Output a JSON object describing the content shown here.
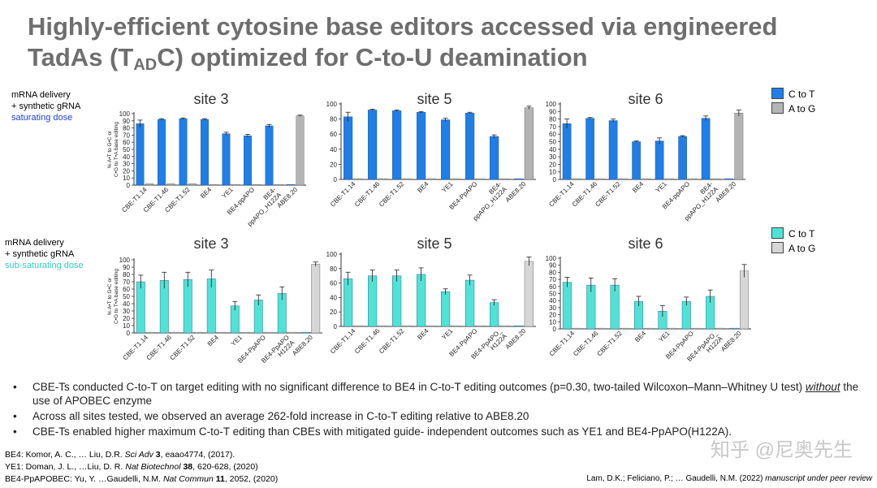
{
  "title": {
    "part1": "Highly-efficient cytosine base editors accessed via engineered",
    "part2a": "TadAs (T",
    "part2sub": "AD",
    "part2b": "C) optimized for C-to-U deamination"
  },
  "rows": [
    {
      "l1": "mRNA delivery",
      "l2": "+ synthetic gRNA",
      "l3": "saturating dose"
    },
    {
      "l1": "mRNA delivery",
      "l2": "+ synthetic gRNA",
      "l3": "sub-saturating dose"
    }
  ],
  "legends": [
    {
      "a": "C to T",
      "b": "A to G",
      "a_color": "#1f7ee8",
      "b_color": "#b4b4b4"
    },
    {
      "a": "C to T",
      "b": "A to G",
      "a_color": "#4fe3d6",
      "b_color": "#d6d6d6"
    }
  ],
  "y_label_line1": "% A•T to G•C or",
  "y_label_line2": "C•G to T•A base editing",
  "chart_data": [
    {
      "type": "bar",
      "title": "site 3",
      "ylim": [
        0,
        100
      ],
      "yticks": [
        0,
        10,
        20,
        30,
        40,
        50,
        60,
        70,
        80,
        90,
        100
      ],
      "categories": [
        "CBE-T1.14",
        "CBE-T1.46",
        "CBE-T1.52",
        "BE4",
        "YE1",
        "BE4-ppAPO",
        "BE4-ppAPO_H122A",
        "ABE8.20"
      ],
      "category_labels": [
        [
          "CBE-T1.14"
        ],
        [
          "CBE-T1.46"
        ],
        [
          "CBE-T1.52"
        ],
        [
          "BE4"
        ],
        [
          "YE1"
        ],
        [
          "BE4-ppAPO"
        ],
        [
          "BE4-",
          "ppAPO_H122A"
        ],
        [
          "ABE8.20"
        ]
      ],
      "series": [
        {
          "name": "C to T",
          "values": [
            86,
            92,
            93,
            92,
            72,
            69,
            83,
            1
          ]
        },
        {
          "name": "A to G",
          "values": [
            2,
            2,
            2,
            1,
            1,
            1,
            1,
            97
          ]
        }
      ],
      "errors": [
        5,
        1,
        1,
        1,
        2,
        2,
        2,
        1
      ],
      "color": "#1f7ee8",
      "other_color": "#b4b4b4"
    },
    {
      "type": "bar",
      "title": "site 5",
      "ylim": [
        0,
        100
      ],
      "yticks": [
        0,
        20,
        40,
        60,
        80,
        100
      ],
      "categories": [
        "CBE-T1.14",
        "CBE-T1.46",
        "CBE-T1.52",
        "BE4",
        "YE1",
        "BE4-PpAPO",
        "BE4-ppAPO_H122A",
        "ABE8.20"
      ],
      "category_labels": [
        [
          "CBE-T1.14"
        ],
        [
          "CBE-T1.46"
        ],
        [
          "CBE-T1.52"
        ],
        [
          "BE4"
        ],
        [
          "YE1"
        ],
        [
          "BE4-PpAPO"
        ],
        [
          "BE4-",
          "ppAPO_H122A"
        ],
        [
          "ABE8.20"
        ]
      ],
      "series": [
        {
          "name": "C to T",
          "values": [
            83,
            92,
            91,
            89,
            79,
            88,
            57,
            1
          ]
        },
        {
          "name": "A to G",
          "values": [
            1,
            1,
            1,
            1,
            1,
            1,
            1,
            95
          ]
        }
      ],
      "errors": [
        6,
        1,
        1,
        1,
        2,
        1,
        2,
        2
      ],
      "color": "#1f7ee8",
      "other_color": "#b4b4b4"
    },
    {
      "type": "bar",
      "title": "site 6",
      "ylim": [
        0,
        100
      ],
      "yticks": [
        0,
        10,
        20,
        30,
        40,
        50,
        60,
        70,
        80,
        90,
        100
      ],
      "categories": [
        "CBE-T1.14",
        "CBE-T1.46",
        "CBE-T1.52",
        "BE4",
        "YE1",
        "BE4-ppAPO",
        "BE4-ppAPO_H122A",
        "ABE8.20"
      ],
      "category_labels": [
        [
          "CBE-T1.14"
        ],
        [
          "CBE-T1.46"
        ],
        [
          "CBE-T1.52"
        ],
        [
          "BE4"
        ],
        [
          "YE1"
        ],
        [
          "BE4-ppAPO"
        ],
        [
          "BE4-",
          "ppAPO_H122A"
        ],
        [
          "ABE8.20"
        ]
      ],
      "series": [
        {
          "name": "C to T",
          "values": [
            74,
            81,
            78,
            50,
            51,
            57,
            81,
            1
          ]
        },
        {
          "name": "A to G",
          "values": [
            1,
            1,
            1,
            1,
            1,
            1,
            1,
            88
          ]
        }
      ],
      "errors": [
        6,
        1,
        2,
        1,
        4,
        1,
        3,
        4
      ],
      "color": "#1f7ee8",
      "other_color": "#b4b4b4"
    },
    {
      "type": "bar",
      "title": "site 3",
      "ylim": [
        0,
        100
      ],
      "yticks": [
        0,
        10,
        20,
        30,
        40,
        50,
        60,
        70,
        80,
        90,
        100
      ],
      "categories": [
        "CBE-T1.14",
        "CBE-T1.46",
        "CBE-T1.52",
        "BE4",
        "YE1",
        "BE4-PpAPO",
        "BE4-PpAPO H122A",
        "ABE8.20"
      ],
      "category_labels": [
        [
          "CBE-T1.14"
        ],
        [
          "CBE-T1.46"
        ],
        [
          "CBE-T1.52"
        ],
        [
          "BE4"
        ],
        [
          "YE1"
        ],
        [
          "BE4-PpAPO"
        ],
        [
          "BE4-PpAPO",
          "H122A"
        ],
        [
          "ABE8.20"
        ]
      ],
      "series": [
        {
          "name": "C to T",
          "values": [
            70,
            72,
            73,
            74,
            37,
            45,
            54,
            1
          ]
        },
        {
          "name": "A to G",
          "values": [
            1,
            1,
            1,
            1,
            1,
            1,
            1,
            94
          ]
        }
      ],
      "errors": [
        9,
        11,
        10,
        12,
        6,
        7,
        9,
        3
      ],
      "color": "#4fe3d6",
      "other_color": "#d6d6d6"
    },
    {
      "type": "bar",
      "title": "site 5",
      "ylim": [
        0,
        100
      ],
      "yticks": [
        0,
        20,
        40,
        60,
        80,
        100
      ],
      "categories": [
        "CBE-T1.14",
        "CBE-T1.46",
        "CBE-T1.52",
        "BE4",
        "YE1",
        "BE4-PpAPO",
        "BE4-PpAPO_H122A",
        "ABE8.20"
      ],
      "category_labels": [
        [
          "CBE-T1.14"
        ],
        [
          "CBE-T1.46"
        ],
        [
          "CBE-T1.52"
        ],
        [
          "BE4"
        ],
        [
          "YE1"
        ],
        [
          "BE4-PpAPO"
        ],
        [
          "BE4-PpAPO_",
          "H122A"
        ],
        [
          "ABE8.20"
        ]
      ],
      "series": [
        {
          "name": "C to T",
          "values": [
            66,
            70,
            70,
            72,
            48,
            64,
            33,
            1
          ]
        },
        {
          "name": "A to G",
          "values": [
            1,
            1,
            1,
            1,
            1,
            1,
            1,
            90
          ]
        }
      ],
      "errors": [
        9,
        8,
        8,
        9,
        4,
        7,
        4,
        6
      ],
      "color": "#4fe3d6",
      "other_color": "#d6d6d6"
    },
    {
      "type": "bar",
      "title": "site 6",
      "ylim": [
        0,
        100
      ],
      "yticks": [
        0,
        10,
        20,
        30,
        40,
        50,
        60,
        70,
        80,
        90,
        100
      ],
      "categories": [
        "CBE-T1.14",
        "CBE-T1.46",
        "CBE-T1.52",
        "BE4",
        "YE1",
        "BE4-PpAPO",
        "BE4-PpAPO_H122A",
        "ABE8.20"
      ],
      "category_labels": [
        [
          "CBE-T1.14"
        ],
        [
          "CBE-T1.46"
        ],
        [
          "CBE-T1.52"
        ],
        [
          "BE4"
        ],
        [
          "YE1"
        ],
        [
          "BE4-PpAPO"
        ],
        [
          "BE4-PpAPO_",
          "H122A"
        ],
        [
          "ABE8.20"
        ]
      ],
      "series": [
        {
          "name": "C to T",
          "values": [
            66,
            62,
            62,
            39,
            25,
            39,
            46,
            1
          ]
        },
        {
          "name": "A to G",
          "values": [
            1,
            1,
            1,
            1,
            1,
            1,
            1,
            82
          ]
        }
      ],
      "errors": [
        7,
        10,
        9,
        7,
        8,
        6,
        9,
        9
      ],
      "color": "#4fe3d6",
      "other_color": "#d6d6d6"
    }
  ],
  "bullets": {
    "b1_pre": "CBE-Ts conducted C-to-T on target editing with no significant difference to BE4 in C-to-T editing outcomes (p=0.30, two-tailed Wilcoxon–Mann–Whitney U test) ",
    "b1_em": "without",
    "b1_post": " the use of APOBEC enzyme",
    "b2": "Across all sites tested, we observed an average 262-fold increase in C-to-T editing relative to ABE8.20",
    "b3": "CBE-Ts enabled higher maximum C-to-T editing than CBEs with mitigated guide- independent outcomes such as YE1 and BE4-PpAPO(H122A)."
  },
  "refs": {
    "r1_pre": "BE4: Komor, A. C., … Liu, D.R. ",
    "r1_j": "Sci Adv",
    "r1_vol": " 3",
    "r1_post": ", eaao4774, (2017).",
    "r2_pre": "YE1: Doman, J. L., …Liu, D. R. ",
    "r2_j": "Nat Biotechnol",
    "r2_vol": " 38",
    "r2_post": ", 620-628, (2020)",
    "r3_pre": "BE4-PpAPOBEC: Yu, Y. …Gaudelli, N.M. ",
    "r3_j": "Nat Commun",
    "r3_vol": " 11",
    "r3_post": ", 2052, (2020)"
  },
  "citation": {
    "pre": "Lam, D.K.; Feliciano, P.; … Gaudelli, N.M. (2022) ",
    "em": "manuscript under peer review"
  },
  "watermark": "知乎 @尼奥先生"
}
